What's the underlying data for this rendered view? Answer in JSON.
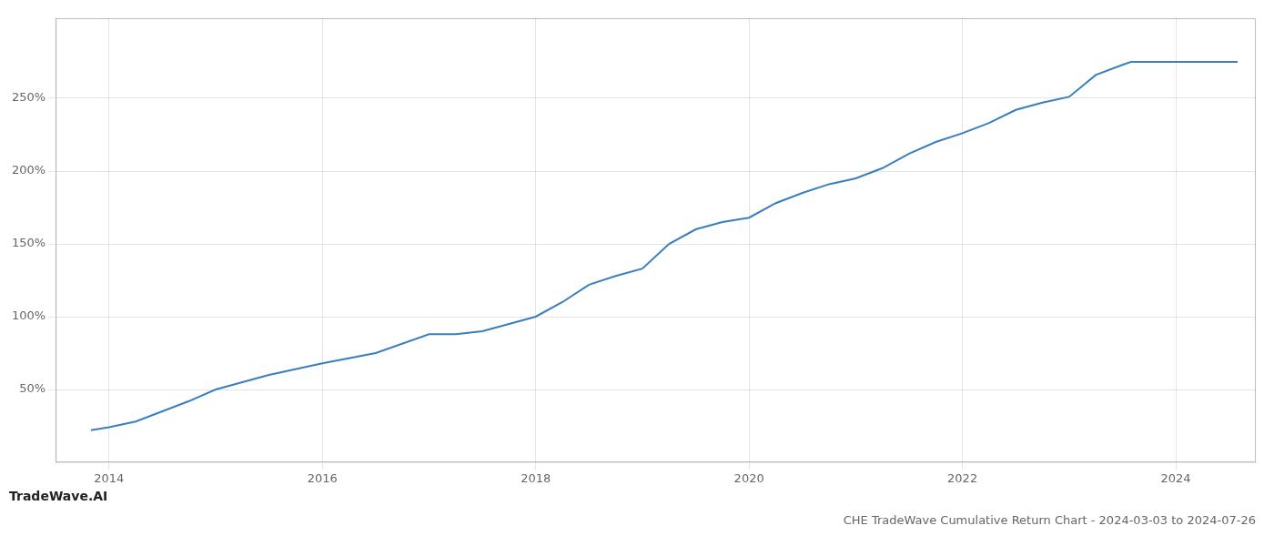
{
  "chart_data": {
    "type": "line",
    "title": "CHE TradeWave Cumulative Return Chart - 2024-03-03 to 2024-07-26",
    "annotations": [
      "TradeWave.AI"
    ],
    "x": [
      2013.83,
      2014.0,
      2014.25,
      2014.75,
      2015.0,
      2015.5,
      2016.0,
      2016.5,
      2017.0,
      2017.25,
      2017.5,
      2017.75,
      2018.0,
      2018.25,
      2018.5,
      2018.75,
      2019.0,
      2019.25,
      2019.5,
      2019.75,
      2020.0,
      2020.25,
      2020.5,
      2020.75,
      2021.0,
      2021.25,
      2021.5,
      2021.75,
      2022.0,
      2022.25,
      2022.5,
      2022.75,
      2023.0,
      2023.25,
      2023.5,
      2023.58,
      2024.0,
      2024.58
    ],
    "values": [
      22,
      24,
      28,
      42,
      50,
      60,
      68,
      75,
      88,
      88,
      90,
      95,
      100,
      110,
      122,
      128,
      133,
      150,
      160,
      165,
      168,
      178,
      185,
      191,
      195,
      202,
      212,
      220,
      226,
      233,
      242,
      247,
      251,
      266,
      273,
      275,
      275,
      275
    ],
    "color": "#3a7ebf",
    "xlim": [
      2013.5,
      2024.75
    ],
    "ylim": [
      0,
      305
    ],
    "xticks": [
      2014,
      2016,
      2018,
      2020,
      2022,
      2024
    ],
    "yticks": [
      {
        "value": 50,
        "label": "50%"
      },
      {
        "value": 100,
        "label": "100%"
      },
      {
        "value": 150,
        "label": "150%"
      },
      {
        "value": 200,
        "label": "200%"
      },
      {
        "value": 250,
        "label": "250%"
      }
    ],
    "grid": true
  }
}
